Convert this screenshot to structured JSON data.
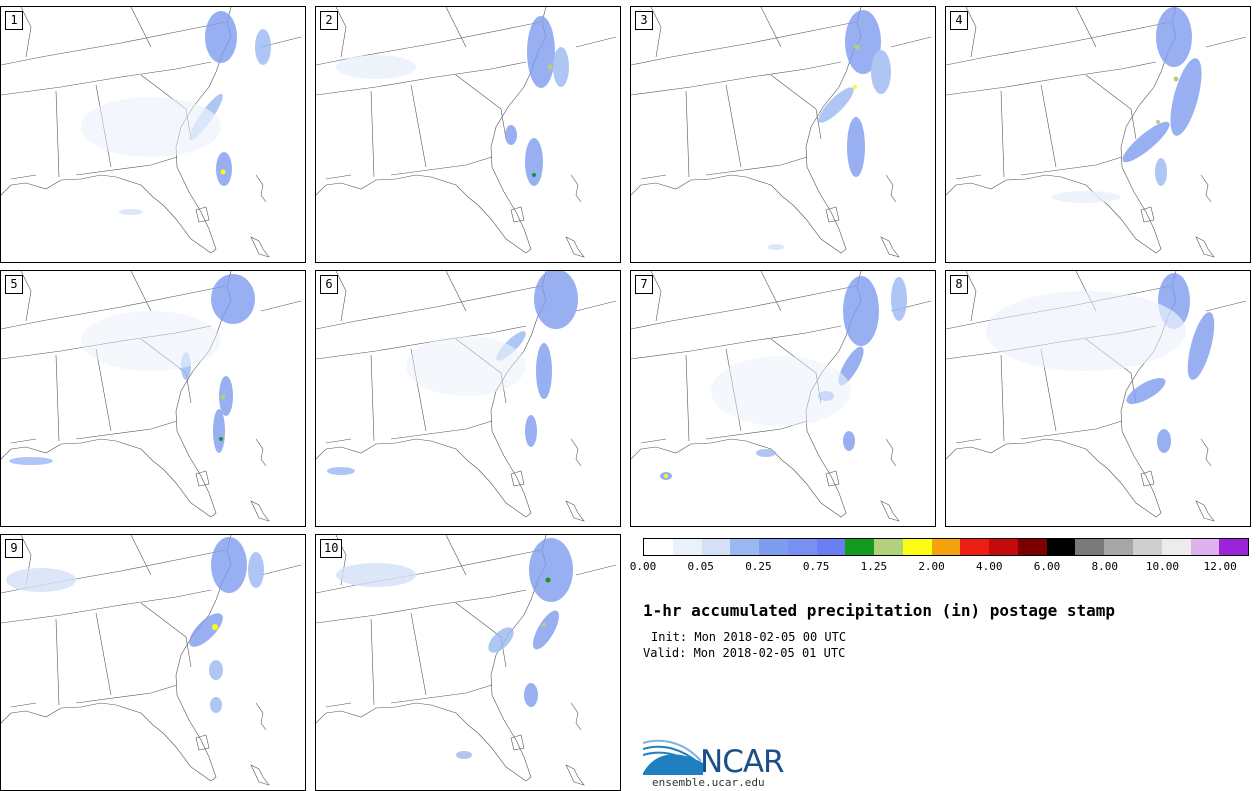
{
  "panels": [
    {
      "label": "1"
    },
    {
      "label": "2"
    },
    {
      "label": "3"
    },
    {
      "label": "4"
    },
    {
      "label": "5"
    },
    {
      "label": "6"
    },
    {
      "label": "7"
    },
    {
      "label": "8"
    },
    {
      "label": "9"
    },
    {
      "label": "10"
    }
  ],
  "colorbar": {
    "colors": [
      "#ffffff",
      "#eaf1fb",
      "#d3e0f8",
      "#9ab8f2",
      "#7f9df0",
      "#7790f2",
      "#6a7ff2",
      "#139a1f",
      "#b3d17c",
      "#fcfc13",
      "#f5a20f",
      "#ee1d14",
      "#c30b0b",
      "#7d0000",
      "#000000",
      "#7a7a7a",
      "#a7a7a7",
      "#cfcfcf",
      "#ececec",
      "#ddb2ee",
      "#9b23d9"
    ],
    "tick_labels": [
      "0.00",
      "0.05",
      "0.25",
      "0.75",
      "1.25",
      "2.00",
      "4.00",
      "6.00",
      "8.00",
      "10.00",
      "12.00"
    ]
  },
  "title": "1-hr accumulated precipitation (in) postage stamp",
  "init": "Init: Mon 2018-02-05 00 UTC",
  "valid": "Valid: Mon 2018-02-05 01 UTC",
  "logo": {
    "text": "NCAR",
    "url": "ensemble.ucar.edu"
  }
}
